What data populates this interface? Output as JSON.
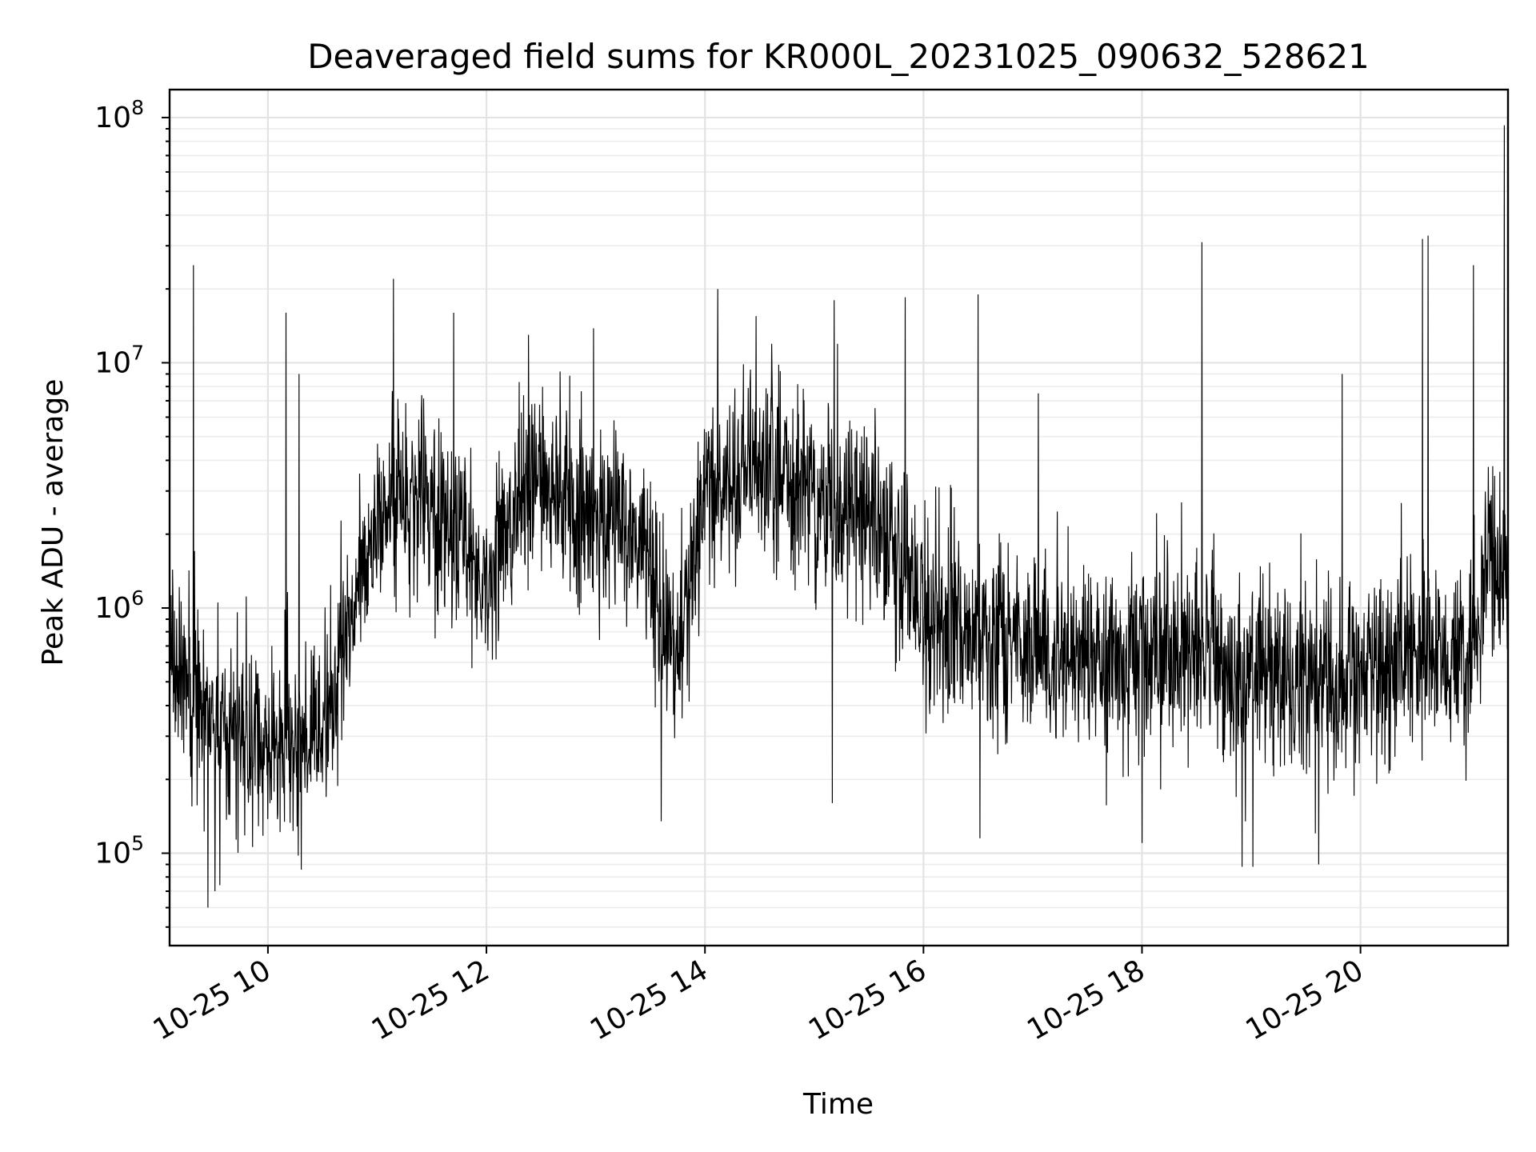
{
  "chart_data": {
    "type": "line",
    "title": "Deaveraged field sums for KR000L_20231025_090632_528621",
    "xlabel": "Time",
    "ylabel": "Peak ADU - average",
    "x_type": "time",
    "y_scale": "log",
    "xlim": [
      "2023-10-25 09:06",
      "2023-10-25 21:21"
    ],
    "ylim": [
      42000,
      130000000
    ],
    "grid": "major and minor",
    "x_ticks": [
      "2023-10-25 10:00",
      "2023-10-25 12:00",
      "2023-10-25 14:00",
      "2023-10-25 16:00",
      "2023-10-25 18:00",
      "2023-10-25 20:00"
    ],
    "x_tick_labels": [
      "10-25 10",
      "10-25 12",
      "10-25 14",
      "10-25 16",
      "10-25 18",
      "10-25 20"
    ],
    "y_ticks": [
      100000,
      1000000,
      10000000,
      100000000
    ],
    "y_tick_labels": [
      {
        "base": "10",
        "exp": "5"
      },
      {
        "base": "10",
        "exp": "6"
      },
      {
        "base": "10",
        "exp": "7"
      },
      {
        "base": "10",
        "exp": "8"
      }
    ],
    "series_color": "#000000",
    "series": [
      {
        "name": "",
        "x": [
          "09:06",
          "09:15",
          "09:30",
          "09:45",
          "10:00",
          "10:15",
          "10:30",
          "10:45",
          "11:00",
          "11:15",
          "11:30",
          "11:45",
          "12:00",
          "12:15",
          "12:30",
          "12:45",
          "13:00",
          "13:15",
          "13:30",
          "13:45",
          "14:00",
          "14:15",
          "14:30",
          "14:45",
          "15:00",
          "15:15",
          "15:30",
          "15:45",
          "16:00",
          "16:15",
          "16:30",
          "16:45",
          "17:00",
          "17:15",
          "17:30",
          "17:45",
          "18:00",
          "18:15",
          "18:30",
          "18:45",
          "19:00",
          "19:15",
          "19:30",
          "19:45",
          "20:00",
          "20:15",
          "20:30",
          "20:45",
          "21:00",
          "21:10",
          "21:21"
        ],
        "y": [
          600000,
          500000,
          330000,
          300000,
          270000,
          250000,
          300000,
          800000,
          2500000,
          2600000,
          2400000,
          1800000,
          1200000,
          2200000,
          3400000,
          2700000,
          2000000,
          2400000,
          1400000,
          600000,
          2800000,
          3600000,
          3600000,
          3300000,
          2600000,
          2600000,
          2300000,
          1700000,
          1000000,
          900000,
          750000,
          700000,
          700000,
          650000,
          600000,
          580000,
          650000,
          650000,
          720000,
          550000,
          500000,
          500000,
          480000,
          520000,
          550000,
          600000,
          650000,
          600000,
          600000,
          1600000,
          1200000
        ],
        "spikes": [
          {
            "x": "09:19",
            "y": 25000000
          },
          {
            "x": "10:10",
            "y": 16000000
          },
          {
            "x": "10:17",
            "y": 9000000
          },
          {
            "x": "11:09",
            "y": 22000000
          },
          {
            "x": "11:42",
            "y": 16000000
          },
          {
            "x": "12:23",
            "y": 13000000
          },
          {
            "x": "14:07",
            "y": 20000000
          },
          {
            "x": "14:28",
            "y": 15500000
          },
          {
            "x": "15:11",
            "y": 18000000
          },
          {
            "x": "15:50",
            "y": 18500000
          },
          {
            "x": "16:30",
            "y": 19000000
          },
          {
            "x": "17:03",
            "y": 7500000
          },
          {
            "x": "18:33",
            "y": 31000000
          },
          {
            "x": "19:50",
            "y": 9000000
          },
          {
            "x": "20:34",
            "y": 32000000
          },
          {
            "x": "20:37",
            "y": 33000000
          },
          {
            "x": "21:02",
            "y": 25000000
          },
          {
            "x": "21:19",
            "y": 93000000
          }
        ],
        "dips": [
          {
            "x": "09:27",
            "y": 60000
          },
          {
            "x": "09:31",
            "y": 70000
          },
          {
            "x": "13:36",
            "y": 135000
          },
          {
            "x": "15:10",
            "y": 160000
          },
          {
            "x": "16:31",
            "y": 115000
          },
          {
            "x": "18:00",
            "y": 110000
          },
          {
            "x": "18:55",
            "y": 88000
          },
          {
            "x": "19:01",
            "y": 88000
          },
          {
            "x": "19:37",
            "y": 90000
          }
        ]
      }
    ]
  }
}
